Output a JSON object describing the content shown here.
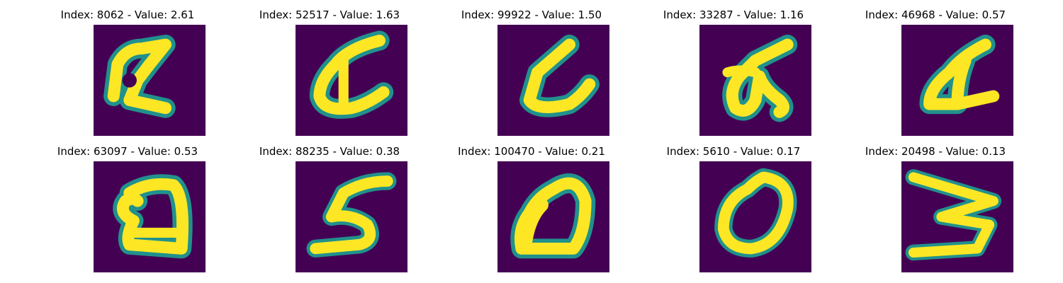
{
  "figure": {
    "panels": [
      {
        "index_label": "Index: 8062 - Value: 2.61",
        "glyph": "a-open-loop"
      },
      {
        "index_label": "Index: 52517 - Value: 1.63",
        "glyph": "a-curve"
      },
      {
        "index_label": "Index: 99922 - Value: 1.50",
        "glyph": "c-open"
      },
      {
        "index_label": "Index: 33287 - Value: 1.16",
        "glyph": "a-loop-tail"
      },
      {
        "index_label": "Index: 46968 - Value: 0.57",
        "glyph": "a-triangle"
      },
      {
        "index_label": "Index: 63097 - Value: 0.53",
        "glyph": "q-loop"
      },
      {
        "index_label": "Index: 88235 - Value: 0.38",
        "glyph": "s-shape"
      },
      {
        "index_label": "Index: 100470 - Value: 0.21",
        "glyph": "d-shape"
      },
      {
        "index_label": "Index: 5610 - Value: 0.17",
        "glyph": "o-shape"
      },
      {
        "index_label": "Index: 20498 - Value: 0.13",
        "glyph": "w-shape"
      }
    ],
    "colors": {
      "background": "#440154",
      "stroke_core": "#fde725",
      "stroke_edge": "#21918c"
    }
  }
}
